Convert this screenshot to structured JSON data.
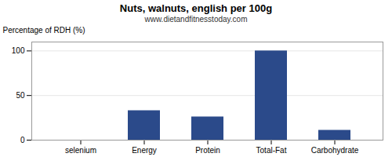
{
  "chart_data": {
    "type": "bar",
    "title": "Nuts, walnuts, english per 100g",
    "subtitle": "www.dietandfitnesstoday.com",
    "categories": [
      "selenium",
      "Energy",
      "Protein",
      "Total-Fat",
      "Carbohydrate"
    ],
    "values": [
      0,
      33,
      26,
      100,
      11
    ],
    "color": "#2b4a8a",
    "ylabel": "Percentage of RDH (%)",
    "ylim": [
      0,
      110
    ],
    "yticks": [
      0,
      50,
      100
    ],
    "grid": true
  }
}
